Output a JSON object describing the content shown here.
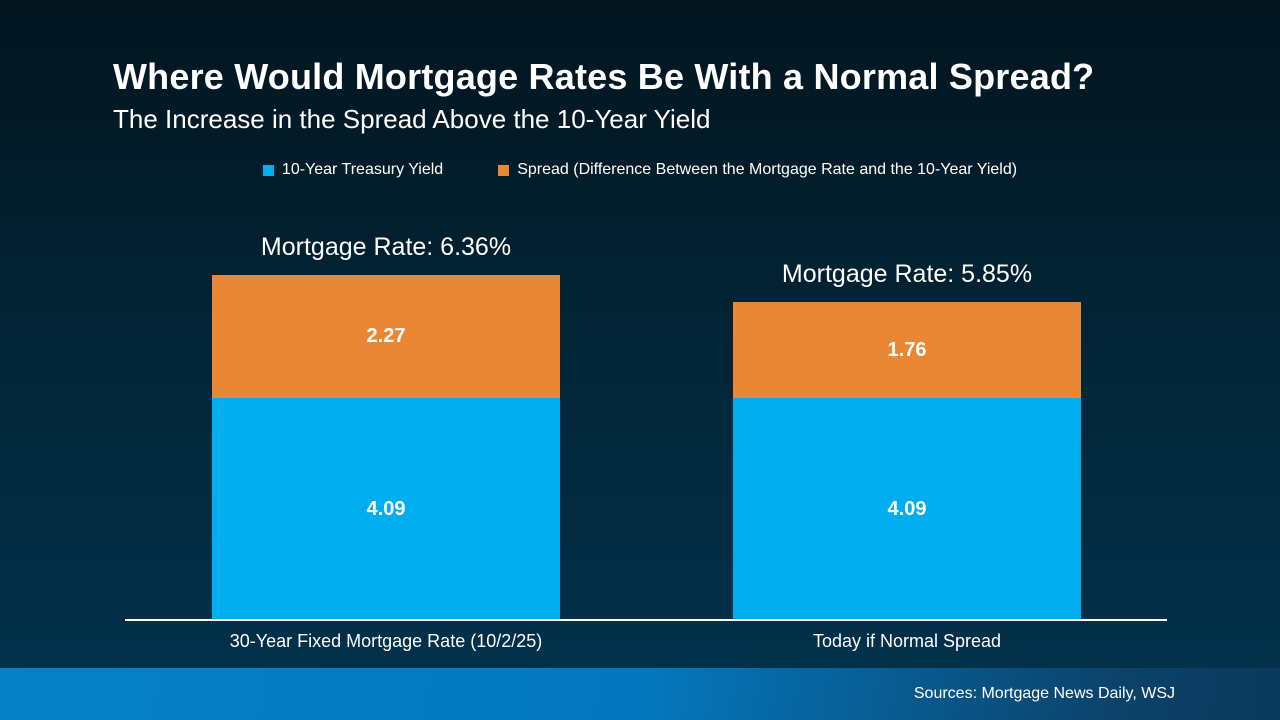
{
  "header": {
    "title": "Where Would Mortgage Rates Be With a Normal Spread?",
    "subtitle": "The Increase in the Spread Above the 10-Year Yield"
  },
  "legend": {
    "items": [
      {
        "label": "10-Year Treasury Yield",
        "color": "#00AEEF"
      },
      {
        "label": "Spread (Difference Between the Mortgage Rate and the 10-Year Yield)",
        "color": "#EA8735"
      }
    ]
  },
  "chart_data": {
    "type": "bar",
    "variant": "stacked-column",
    "title": "Where Would Mortgage Rates Be With a Normal Spread?",
    "subtitle": "The Increase in the Spread Above the 10-Year Yield",
    "categories": [
      "30-Year Fixed Mortgage Rate (10/2/25)",
      "Today if Normal Spread"
    ],
    "series": [
      {
        "name": "10-Year Treasury Yield",
        "color": "#00AEEF",
        "values": [
          4.09,
          4.09
        ]
      },
      {
        "name": "Spread (Difference Between the Mortgage Rate and the 10-Year Yield)",
        "color": "#EA8735",
        "values": [
          2.27,
          1.76
        ]
      }
    ],
    "totals": [
      6.36,
      5.85
    ],
    "total_labels": [
      "Mortgage Rate: 6.36%",
      "Mortgage Rate: 5.85%"
    ],
    "ylim": [
      0,
      6.5
    ],
    "grid": false,
    "legend_position": "top",
    "value_label_color": "#FFFFFF"
  },
  "footer": {
    "sources": "Sources: Mortgage News Daily, WSJ"
  },
  "colors": {
    "background_top": "#021520",
    "background_bottom": "#04324D",
    "bar_blue": "#00AEEF",
    "bar_orange": "#EA8735",
    "footer_left": "#0581C8",
    "footer_right": "#0A3A5C",
    "axis": "#FFFFFF",
    "text": "#FFFFFF"
  }
}
